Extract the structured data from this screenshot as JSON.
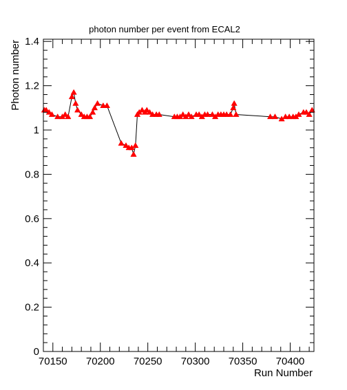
{
  "chart_data": {
    "type": "scatter",
    "title": "photon number per event from ECAL2",
    "xlabel": "Run Number",
    "ylabel": "Photon number",
    "xlim": [
      70140,
      70425
    ],
    "ylim": [
      0,
      1.41
    ],
    "grid": false,
    "legend": "none",
    "connected": true,
    "marker": "triangle-up",
    "marker_color": "#ff0000",
    "line_color": "#000000",
    "x_ticks": [
      70150,
      70200,
      70250,
      70300,
      70350,
      70400
    ],
    "y_ticks": [
      0,
      0.2,
      0.4,
      0.6,
      0.8,
      1,
      1.2,
      1.4
    ],
    "series": [
      {
        "x": [
          70141,
          70143,
          70146,
          70149,
          70155,
          70160,
          70163,
          70166,
          70170,
          70172,
          70174,
          70176,
          70180,
          70183,
          70186,
          70189,
          70192,
          70194,
          70197,
          70203,
          70207,
          70222,
          70227,
          70230,
          70233,
          70235,
          70237,
          70239,
          70241,
          70244,
          70247,
          70249,
          70252,
          70255,
          70259,
          70262,
          70278,
          70281,
          70284,
          70287,
          70290,
          70293,
          70296,
          70301,
          70304,
          70307,
          70310,
          70313,
          70318,
          70321,
          70324,
          70327,
          70330,
          70333,
          70337,
          70340,
          70341,
          70343,
          70379,
          70384,
          70391,
          70395,
          70399,
          70403,
          70406,
          70409,
          70414,
          70417,
          70420,
          70423
        ],
        "y": [
          1.09,
          1.09,
          1.08,
          1.07,
          1.06,
          1.06,
          1.07,
          1.06,
          1.15,
          1.17,
          1.12,
          1.09,
          1.07,
          1.06,
          1.06,
          1.06,
          1.08,
          1.1,
          1.12,
          1.11,
          1.11,
          0.94,
          0.93,
          0.92,
          0.92,
          0.89,
          0.93,
          1.07,
          1.08,
          1.09,
          1.08,
          1.09,
          1.08,
          1.07,
          1.07,
          1.07,
          1.06,
          1.06,
          1.06,
          1.07,
          1.06,
          1.07,
          1.06,
          1.07,
          1.07,
          1.06,
          1.07,
          1.07,
          1.07,
          1.06,
          1.07,
          1.07,
          1.07,
          1.07,
          1.07,
          1.1,
          1.12,
          1.07,
          1.06,
          1.06,
          1.05,
          1.06,
          1.06,
          1.06,
          1.06,
          1.07,
          1.08,
          1.08,
          1.07,
          1.09
        ]
      }
    ]
  }
}
